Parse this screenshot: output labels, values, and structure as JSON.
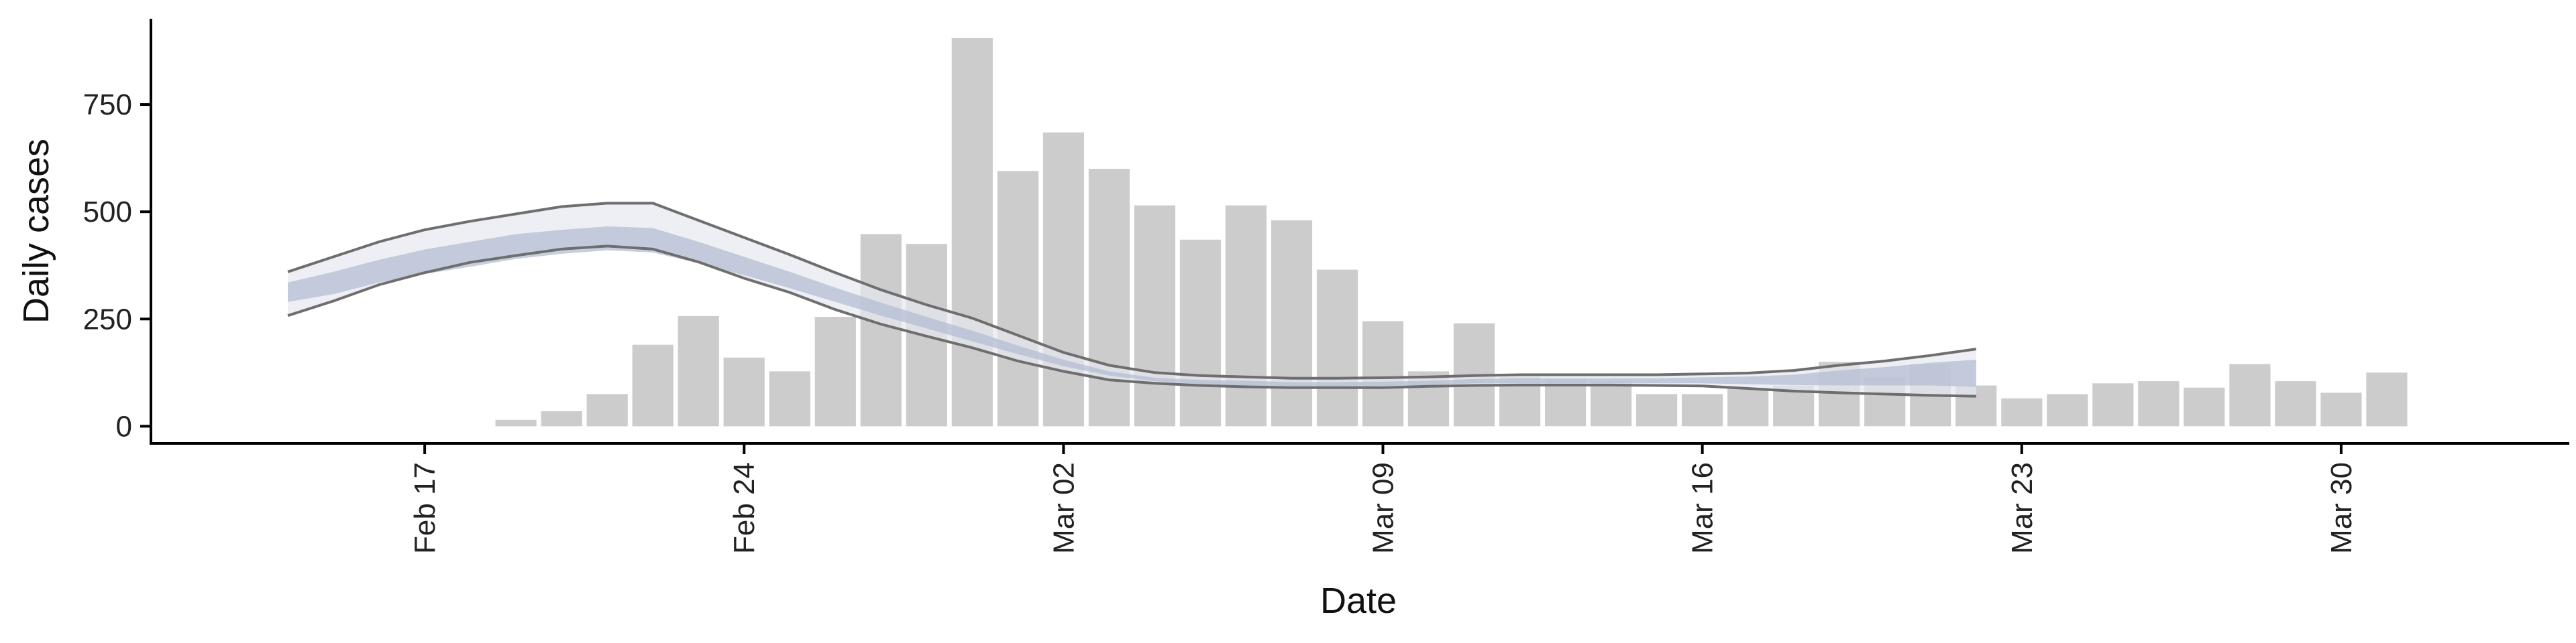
{
  "chart_data": {
    "type": "bar",
    "xlabel": "Date",
    "ylabel": "Daily cases",
    "ylim": [
      -40,
      950
    ],
    "y_ticks": [
      0,
      250,
      500,
      750
    ],
    "x_ticks": [
      {
        "date": "2020-02-17",
        "label": "Feb 17"
      },
      {
        "date": "2020-02-24",
        "label": "Feb 24"
      },
      {
        "date": "2020-03-02",
        "label": "Mar 02"
      },
      {
        "date": "2020-03-09",
        "label": "Mar 09"
      },
      {
        "date": "2020-03-16",
        "label": "Mar 16"
      },
      {
        "date": "2020-03-23",
        "label": "Mar 23"
      },
      {
        "date": "2020-03-30",
        "label": "Mar 30"
      }
    ],
    "xlim": [
      "2020-02-11",
      "2020-04-04"
    ],
    "bars": {
      "color": "#cccccc",
      "dates": [
        "2020-02-19",
        "2020-02-20",
        "2020-02-21",
        "2020-02-22",
        "2020-02-23",
        "2020-02-24",
        "2020-02-25",
        "2020-02-26",
        "2020-02-27",
        "2020-02-28",
        "2020-02-29",
        "2020-03-01",
        "2020-03-02",
        "2020-03-03",
        "2020-03-04",
        "2020-03-05",
        "2020-03-06",
        "2020-03-07",
        "2020-03-08",
        "2020-03-09",
        "2020-03-10",
        "2020-03-11",
        "2020-03-12",
        "2020-03-13",
        "2020-03-14",
        "2020-03-15",
        "2020-03-16",
        "2020-03-17",
        "2020-03-18",
        "2020-03-19",
        "2020-03-20",
        "2020-03-21",
        "2020-03-22",
        "2020-03-23",
        "2020-03-24",
        "2020-03-25",
        "2020-03-26",
        "2020-03-27",
        "2020-03-28",
        "2020-03-29",
        "2020-03-30",
        "2020-03-31"
      ],
      "values": [
        15,
        35,
        75,
        190,
        257,
        160,
        128,
        255,
        448,
        425,
        905,
        595,
        685,
        600,
        515,
        435,
        515,
        480,
        365,
        245,
        128,
        240,
        115,
        110,
        105,
        75,
        75,
        90,
        95,
        150,
        115,
        145,
        95,
        65,
        75,
        100,
        105,
        90,
        145,
        105,
        78,
        125
      ]
    },
    "estimate": {
      "line_color": "#6e6e6e",
      "band_outer_color": "#e6e8f0",
      "band_inner_color": "#b4bdd3",
      "dates": [
        "2020-02-14",
        "2020-02-15",
        "2020-02-16",
        "2020-02-17",
        "2020-02-18",
        "2020-02-19",
        "2020-02-20",
        "2020-02-21",
        "2020-02-22",
        "2020-02-23",
        "2020-02-24",
        "2020-02-25",
        "2020-02-26",
        "2020-02-27",
        "2020-02-28",
        "2020-02-29",
        "2020-03-01",
        "2020-03-02",
        "2020-03-03",
        "2020-03-04",
        "2020-03-05",
        "2020-03-06",
        "2020-03-07",
        "2020-03-08",
        "2020-03-09",
        "2020-03-10",
        "2020-03-11",
        "2020-03-12",
        "2020-03-13",
        "2020-03-14",
        "2020-03-15",
        "2020-03-16",
        "2020-03-17",
        "2020-03-18",
        "2020-03-19",
        "2020-03-20",
        "2020-03-21",
        "2020-03-22"
      ],
      "upper": [
        360,
        395,
        430,
        458,
        478,
        495,
        512,
        520,
        520,
        480,
        440,
        400,
        358,
        318,
        283,
        252,
        212,
        172,
        142,
        125,
        118,
        115,
        112,
        112,
        113,
        115,
        118,
        120,
        120,
        120,
        120,
        122,
        124,
        130,
        142,
        152,
        165,
        180
      ],
      "inner_upper": [
        335,
        360,
        388,
        412,
        430,
        448,
        458,
        466,
        462,
        430,
        395,
        360,
        323,
        288,
        255,
        223,
        188,
        155,
        128,
        113,
        108,
        106,
        103,
        103,
        104,
        106,
        110,
        112,
        112,
        112,
        112,
        114,
        116,
        120,
        130,
        138,
        148,
        155
      ],
      "inner_lower": [
        290,
        308,
        335,
        355,
        372,
        390,
        402,
        410,
        405,
        380,
        352,
        322,
        290,
        258,
        228,
        198,
        168,
        140,
        118,
        105,
        98,
        95,
        93,
        93,
        94,
        96,
        100,
        100,
        100,
        100,
        100,
        100,
        98,
        96,
        95,
        95,
        95,
        92
      ],
      "lower": [
        258,
        292,
        330,
        358,
        382,
        398,
        413,
        420,
        413,
        383,
        345,
        312,
        272,
        238,
        210,
        183,
        152,
        128,
        108,
        100,
        95,
        92,
        90,
        90,
        90,
        93,
        95,
        96,
        96,
        96,
        95,
        94,
        88,
        82,
        78,
        75,
        72,
        70
      ]
    }
  }
}
